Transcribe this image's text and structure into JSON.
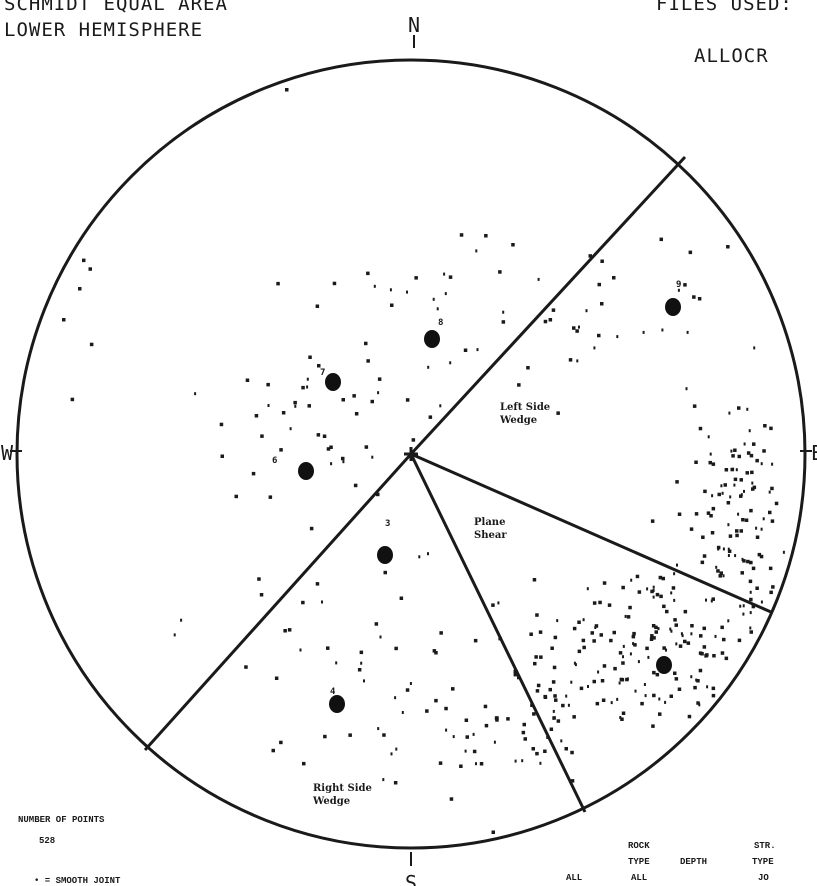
{
  "header": {
    "projection_line1": "SCHMIDT EQUAL AREA",
    "projection_line2": "LOWER HEMISPHERE",
    "files_used_label": "FILES USED:",
    "file_name": "ALLOCR"
  },
  "compass": {
    "north": "N",
    "south": "S",
    "west": "W",
    "east": "E"
  },
  "regions": {
    "left_side_wedge": [
      "Left Side",
      "Wedge"
    ],
    "plane_shear": [
      "Plane",
      "Shear"
    ],
    "right_side_wedge": [
      "Right Side",
      "Wedge"
    ]
  },
  "clusters": [
    {
      "label": "3"
    },
    {
      "label": "4"
    },
    {
      "label": "6"
    },
    {
      "label": "7"
    },
    {
      "label": "8"
    },
    {
      "label": "9"
    }
  ],
  "footer": {
    "number_of_points_label": "NUMBER OF POINTS",
    "number_of_points_value": "528",
    "legend_smooth_joint": "• = SMOOTH JOINT",
    "col_all": "ALL",
    "rock_type_label": [
      "ROCK",
      "TYPE"
    ],
    "rock_type_value": "ALL",
    "depth_label": "DEPTH",
    "str_type_label": [
      "STR.",
      "TYPE"
    ],
    "str_type_value": "JO"
  },
  "colors": {
    "ink": "#1a1a1a",
    "background": "#ffffff"
  }
}
